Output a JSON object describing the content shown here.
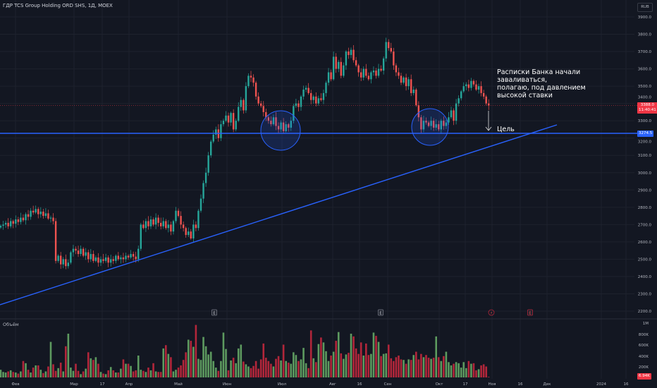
{
  "header": {
    "title": "ГДР TCS Group Holding ORD SHS, 1Д, MOEX",
    "currency": "RUB"
  },
  "volume_pane": {
    "title": "Объём",
    "last_volume_label": "6.94K"
  },
  "price_labels": {
    "last_price": "3388.0",
    "countdown": "11:40:41",
    "level": "3274.5"
  },
  "annotations": {
    "note": "Расписки Банка начали\nзаваливаться,\nполагаю, под давлением\nвысокой ставки",
    "target": "Цель"
  },
  "colors": {
    "up": "#26a69a",
    "down": "#ef5350",
    "vol_up": "#5d9a5f",
    "vol_down": "#b2263a",
    "line": "#2962ff",
    "background": "#131722"
  },
  "events": [
    {
      "type": "earnings",
      "label": "E",
      "date": "Июн"
    },
    {
      "type": "earnings",
      "label": "E",
      "date": "Сен"
    },
    {
      "type": "dividend",
      "label": "⚡",
      "date": "Ноя"
    },
    {
      "type": "earnings",
      "label": "E",
      "date": "Ноя"
    }
  ],
  "chart_data": {
    "type": "candlestick",
    "ylim": [
      2200,
      3900
    ],
    "y_ticks": [
      "3900.0",
      "3800.0",
      "3700.0",
      "3600.0",
      "3500.0",
      "3400.0",
      "3300.0",
      "3200.0",
      "3100.0",
      "3000.0",
      "2900.0",
      "2800.0",
      "2700.0",
      "2600.0",
      "2500.0",
      "2400.0",
      "2300.0",
      "2200.0"
    ],
    "x_ticks": [
      "Фев",
      "Мар",
      "17",
      "Апр",
      "Май",
      "Июн",
      "Июл",
      "Авг",
      "16",
      "Сен",
      "Окт",
      "17",
      "Ноя",
      "16",
      "Дек",
      "2024",
      "16"
    ],
    "volume_ticks": [
      "1M",
      "800K",
      "600K",
      "400K",
      "200K"
    ],
    "closes": [
      2693,
      2700,
      2710,
      2690,
      2720,
      2705,
      2730,
      2715,
      2740,
      2725,
      2760,
      2745,
      2780,
      2770,
      2790,
      2760,
      2775,
      2750,
      2765,
      2735,
      2740,
      2720,
      2490,
      2520,
      2470,
      2500,
      2460,
      2480,
      2540,
      2560,
      2550,
      2530,
      2560,
      2520,
      2540,
      2500,
      2530,
      2490,
      2510,
      2480,
      2500,
      2490,
      2510,
      2480,
      2500,
      2490,
      2520,
      2500,
      2510,
      2500,
      2520,
      2510,
      2530,
      2515,
      2500,
      2560,
      2700,
      2680,
      2720,
      2690,
      2730,
      2700,
      2740,
      2710,
      2690,
      2720,
      2680,
      2700,
      2660,
      2720,
      2780,
      2750,
      2700,
      2680,
      2640,
      2660,
      2620,
      2700,
      2680,
      2780,
      2850,
      2940,
      3000,
      3100,
      3180,
      3220,
      3250,
      3200,
      3280,
      3300,
      3330,
      3290,
      3345,
      3250,
      3300,
      3380,
      3420,
      3360,
      3500,
      3560,
      3550,
      3520,
      3440,
      3400,
      3385,
      3350,
      3320,
      3300,
      3280,
      3320,
      3270,
      3250,
      3290,
      3240,
      3280,
      3260,
      3300,
      3385,
      3400,
      3380,
      3440,
      3480,
      3490,
      3460,
      3420,
      3440,
      3400,
      3430,
      3420,
      3460,
      3520,
      3580,
      3540,
      3670,
      3600,
      3640,
      3560,
      3620,
      3700,
      3680,
      3710,
      3650,
      3620,
      3580,
      3550,
      3600,
      3560,
      3540,
      3580,
      3590,
      3560,
      3600,
      3590,
      3660,
      3755,
      3720,
      3700,
      3620,
      3580,
      3560,
      3520,
      3550,
      3500,
      3540,
      3460,
      3480,
      3390,
      3320,
      3250,
      3300,
      3290,
      3270,
      3300,
      3260,
      3280,
      3250,
      3300,
      3270,
      3290,
      3320,
      3360,
      3300,
      3400,
      3430,
      3470,
      3500,
      3510,
      3490,
      3530,
      3510,
      3480,
      3500,
      3460,
      3440,
      3400,
      3388
    ],
    "volumes_k": [
      140,
      100,
      90,
      110,
      130,
      100,
      90,
      70,
      110,
      300,
      260,
      140,
      90,
      180,
      220,
      220,
      140,
      80,
      110,
      200,
      650,
      240,
      120,
      170,
      270,
      110,
      570,
      800,
      180,
      120,
      250,
      120,
      60,
      110,
      160,
      460,
      350,
      320,
      370,
      250,
      100,
      70,
      60,
      130,
      190,
      130,
      90,
      90,
      160,
      330,
      250,
      250,
      210,
      110,
      130,
      400,
      140,
      120,
      100,
      180,
      130,
      260,
      110,
      100,
      100,
      530,
      590,
      430,
      370,
      110,
      140,
      180,
      220,
      320,
      460,
      690,
      670,
      560,
      960,
      340,
      320,
      740,
      570,
      420,
      470,
      300,
      180,
      120,
      300,
      820,
      520,
      130,
      310,
      360,
      260,
      530,
      600,
      290,
      240,
      200,
      170,
      210,
      300,
      160,
      330,
      620,
      360,
      300,
      250,
      200,
      340,
      390,
      310,
      600,
      300,
      270,
      250,
      460,
      410,
      300,
      330,
      540,
      260,
      170,
      860,
      350,
      280,
      610,
      730,
      640,
      480,
      300,
      400,
      470,
      670,
      830,
      440,
      340,
      420,
      450,
      800,
      750,
      530,
      430,
      640,
      400,
      620,
      410,
      430,
      820,
      760,
      650,
      390,
      430,
      440,
      600,
      350,
      300,
      370,
      400,
      330,
      320,
      250,
      330,
      320,
      410,
      470,
      330,
      430,
      370,
      410,
      360,
      340,
      360,
      750,
      370,
      300,
      390,
      470,
      280,
      220,
      250,
      280,
      260,
      180,
      280,
      170,
      300,
      250,
      260,
      130,
      150,
      220,
      240,
      200,
      10
    ],
    "horizontal_level": 3274.5,
    "trendline": {
      "from": {
        "date": "Янв",
        "price": 2237
      },
      "to": {
        "date": "Дек",
        "price": 3276
      }
    }
  }
}
